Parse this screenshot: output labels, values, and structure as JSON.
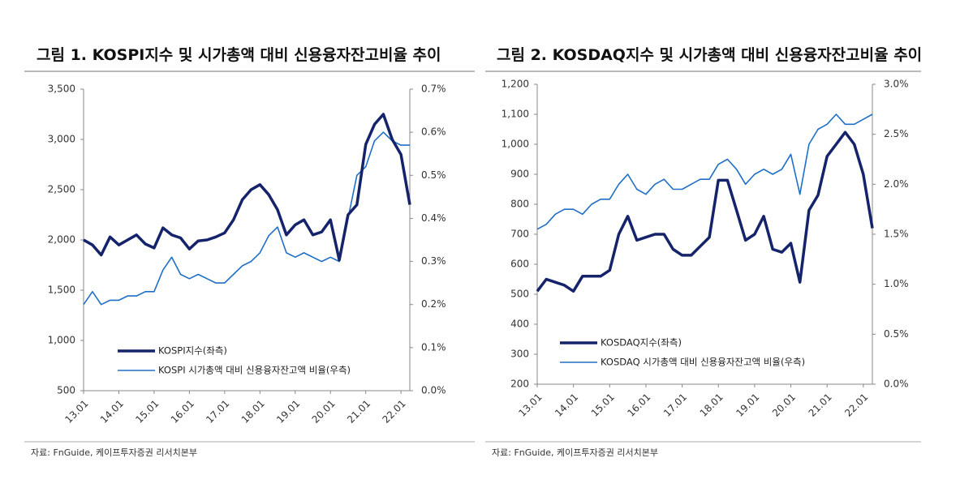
{
  "chart_data": [
    {
      "type": "line",
      "title": "그림 1. KOSPI지수 및 시가총액 대비 신용융자잔고비율 추이",
      "source": "자료: FnGuide, 케이프투자증권 리서치본부",
      "categories": [
        "13.01",
        null,
        null,
        null,
        "14.01",
        null,
        null,
        null,
        "15.01",
        null,
        null,
        null,
        "16.01",
        null,
        null,
        null,
        "17.01",
        null,
        null,
        null,
        "18.01",
        null,
        null,
        null,
        "19.01",
        null,
        null,
        null,
        "20.01",
        null,
        null,
        null,
        "21.01",
        null,
        null,
        null,
        "22.01",
        null
      ],
      "series": [
        {
          "name": "KOSPI지수(좌측)",
          "color": "#15236b",
          "values": [
            2000,
            1950,
            1850,
            2030,
            1950,
            2000,
            2050,
            1960,
            1920,
            2120,
            2050,
            2020,
            1910,
            1990,
            2000,
            2030,
            2070,
            2200,
            2400,
            2500,
            2550,
            2450,
            2300,
            2050,
            2150,
            2200,
            2050,
            2080,
            2200,
            1800,
            2250,
            2350,
            2950,
            3150,
            3250,
            3000,
            2850,
            2350
          ]
        },
        {
          "name": "KOSPI 시가총액 대비 신용융자잔고액 비율(우측)",
          "color": "#1f6fc6",
          "axis": "y2",
          "values": [
            0.2,
            0.23,
            0.2,
            0.21,
            0.21,
            0.22,
            0.22,
            0.23,
            0.23,
            0.28,
            0.31,
            0.27,
            0.26,
            0.27,
            0.26,
            0.25,
            0.25,
            0.27,
            0.29,
            0.3,
            0.32,
            0.36,
            0.38,
            0.32,
            0.31,
            0.32,
            0.31,
            0.3,
            0.31,
            0.3,
            0.4,
            0.5,
            0.52,
            0.58,
            0.6,
            0.58,
            0.57,
            0.57
          ]
        }
      ],
      "ylim": [
        500,
        3500
      ],
      "yticks": [
        500,
        {
          "value": 1000,
          "label": "1,000"
        },
        {
          "value": 1500,
          "label": "1,500"
        },
        {
          "value": 2000,
          "label": "2,000"
        },
        {
          "value": 2500,
          "label": "2,500"
        },
        {
          "value": 3000,
          "label": "3,000"
        },
        {
          "value": 3500,
          "label": "3,500"
        }
      ],
      "y2lim": [
        0,
        0.7
      ],
      "y2ticks": [
        {
          "value": 0,
          "label": "0.0%"
        },
        {
          "value": 0.1,
          "label": "0.1%"
        },
        {
          "value": 0.2,
          "label": "0.2%"
        },
        {
          "value": 0.3,
          "label": "0.3%"
        },
        {
          "value": 0.4,
          "label": "0.4%"
        },
        {
          "value": 0.5,
          "label": "0.5%"
        },
        {
          "value": 0.6,
          "label": "0.6%"
        },
        {
          "value": 0.7,
          "label": "0.7%"
        }
      ]
    },
    {
      "type": "line",
      "title": "그림 2. KOSDAQ지수 및 시가총액 대비 신용융자잔고비율 추이",
      "source": "자료: FnGuide, 케이프투자증권 리서치본부",
      "categories": [
        "13.01",
        null,
        null,
        null,
        "14.01",
        null,
        null,
        null,
        "15.01",
        null,
        null,
        null,
        "16.01",
        null,
        null,
        null,
        "17.01",
        null,
        null,
        null,
        "18.01",
        null,
        null,
        null,
        "19.01",
        null,
        null,
        null,
        "20.01",
        null,
        null,
        null,
        "21.01",
        null,
        null,
        null,
        "22.01",
        null
      ],
      "series": [
        {
          "name": "KOSDAQ지수(좌측)",
          "color": "#15236b",
          "values": [
            510,
            550,
            540,
            530,
            510,
            560,
            560,
            560,
            580,
            700,
            760,
            680,
            690,
            700,
            700,
            650,
            630,
            630,
            660,
            690,
            880,
            880,
            780,
            680,
            700,
            760,
            650,
            640,
            670,
            540,
            780,
            830,
            960,
            1000,
            1040,
            1000,
            900,
            720
          ]
        },
        {
          "name": "KOSDAQ 시가총액 대비 신용융자잔고액 비율(우측)",
          "color": "#1f6fc6",
          "axis": "y2",
          "values": [
            1.55,
            1.6,
            1.7,
            1.75,
            1.75,
            1.7,
            1.8,
            1.85,
            1.85,
            2.0,
            2.1,
            1.95,
            1.9,
            2.0,
            2.05,
            1.95,
            1.95,
            2.0,
            2.05,
            2.05,
            2.2,
            2.25,
            2.15,
            2.0,
            2.1,
            2.15,
            2.1,
            2.15,
            2.3,
            1.9,
            2.4,
            2.55,
            2.6,
            2.7,
            2.6,
            2.6,
            2.65,
            2.7
          ]
        }
      ],
      "ylim": [
        200,
        1200
      ],
      "yticks": [
        200,
        300,
        400,
        500,
        600,
        700,
        800,
        900,
        {
          "value": 1000,
          "label": "1,000"
        },
        {
          "value": 1100,
          "label": "1,100"
        },
        {
          "value": 1200,
          "label": "1,200"
        }
      ],
      "y2lim": [
        0,
        3
      ],
      "y2ticks": [
        {
          "value": 0,
          "label": "0.0%"
        },
        {
          "value": 0.5,
          "label": "0.5%"
        },
        {
          "value": 1,
          "label": "1.0%"
        },
        {
          "value": 1.5,
          "label": "1.5%"
        },
        {
          "value": 2,
          "label": "2.0%"
        },
        {
          "value": 2.5,
          "label": "2.5%"
        },
        {
          "value": 3,
          "label": "3.0%"
        }
      ]
    }
  ]
}
